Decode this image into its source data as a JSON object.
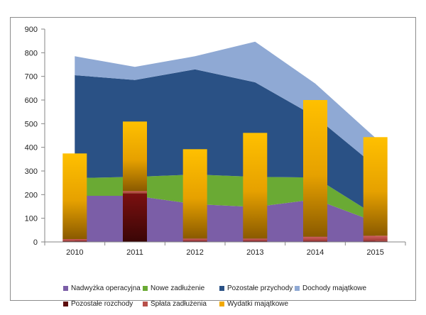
{
  "chart_data": {
    "type": "area+bar",
    "title": "",
    "xlabel": "",
    "ylabel": "",
    "categories": [
      "2010",
      "2011",
      "2012",
      "2013",
      "2014",
      "2015"
    ],
    "ylim": [
      0,
      900
    ],
    "yticks": [
      0,
      100,
      200,
      300,
      400,
      500,
      600,
      700,
      800,
      900
    ],
    "grid": false,
    "legend_position": "bottom",
    "area_series": [
      {
        "name": "Nadwyżka operacyjna",
        "color": "#7b5ea7",
        "values": [
          195,
          195,
          160,
          148,
          180,
          85
        ]
      },
      {
        "name": "Nowe zadłużenie",
        "color": "#6aaa34",
        "values": [
          75,
          80,
          125,
          127,
          92,
          28
        ]
      },
      {
        "name": "Pozostałe przychody",
        "color": "#2a5185",
        "values": [
          435,
          410,
          445,
          400,
          258,
          208
        ]
      },
      {
        "name": "Dochody majątkowe",
        "color": "#8fa9d4",
        "values": [
          80,
          55,
          55,
          172,
          140,
          119
        ]
      }
    ],
    "bar_series": [
      {
        "name": "Pozostałe rozchody",
        "color": "#5c0d0d",
        "values": [
          4,
          205,
          4,
          4,
          4,
          4
        ]
      },
      {
        "name": "Spłata zadłużenia",
        "color": "#b8504a",
        "values": [
          8,
          10,
          10,
          10,
          18,
          22
        ]
      },
      {
        "name": "Wydatki majątkowe",
        "color": "#f2a900",
        "values": [
          362,
          294,
          378,
          447,
          578,
          417
        ]
      }
    ]
  },
  "legend": {
    "row1": [
      {
        "label": "Nadwyżka operacyjna",
        "color": "#7b5ea7"
      },
      {
        "label": "Nowe zadłużenie",
        "color": "#6aaa34"
      },
      {
        "label": "Pozostałe przychody",
        "color": "#2a5185"
      },
      {
        "label": "Dochody majątkowe",
        "color": "#8fa9d4"
      }
    ],
    "row2": [
      {
        "label": "Pozostałe rozchody",
        "color": "#5c0d0d"
      },
      {
        "label": "Spłata zadłużenia",
        "color": "#b8504a"
      },
      {
        "label": "Wydatki majątkowe",
        "color": "#f2a900"
      }
    ]
  }
}
